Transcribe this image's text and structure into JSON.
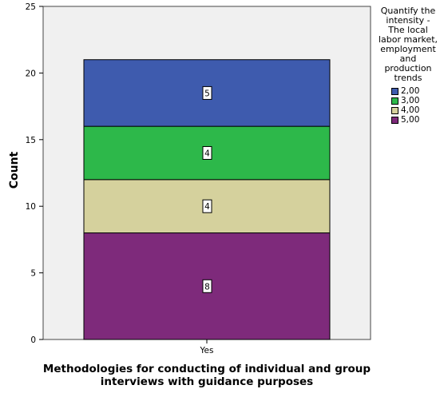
{
  "chart_data": {
    "type": "bar",
    "stacked": true,
    "categories": [
      "Yes"
    ],
    "series": [
      {
        "name": "5,00",
        "values": [
          8
        ],
        "color": "#7E2A7B"
      },
      {
        "name": "4,00",
        "values": [
          4
        ],
        "color": "#D5D19D"
      },
      {
        "name": "3,00",
        "values": [
          4
        ],
        "color": "#2DB84A"
      },
      {
        "name": "2,00",
        "values": [
          5
        ],
        "color": "#3E5BAE"
      }
    ],
    "legend_order": [
      "2,00",
      "3,00",
      "4,00",
      "5,00"
    ],
    "legend_title": "Quantify the\nintensity -\nThe local\nlabor market,\nemployment\nand\nproduction\ntrends",
    "xlabel": "Methodologies for conducting of individual and group\ninterviews with guidance purposes",
    "ylabel": "Count",
    "ylim": [
      0,
      25
    ],
    "yticks": [
      0,
      5,
      10,
      15,
      20,
      25
    ],
    "grid": false,
    "legend_position": "right",
    "plot_background": "#F0F0F0"
  }
}
